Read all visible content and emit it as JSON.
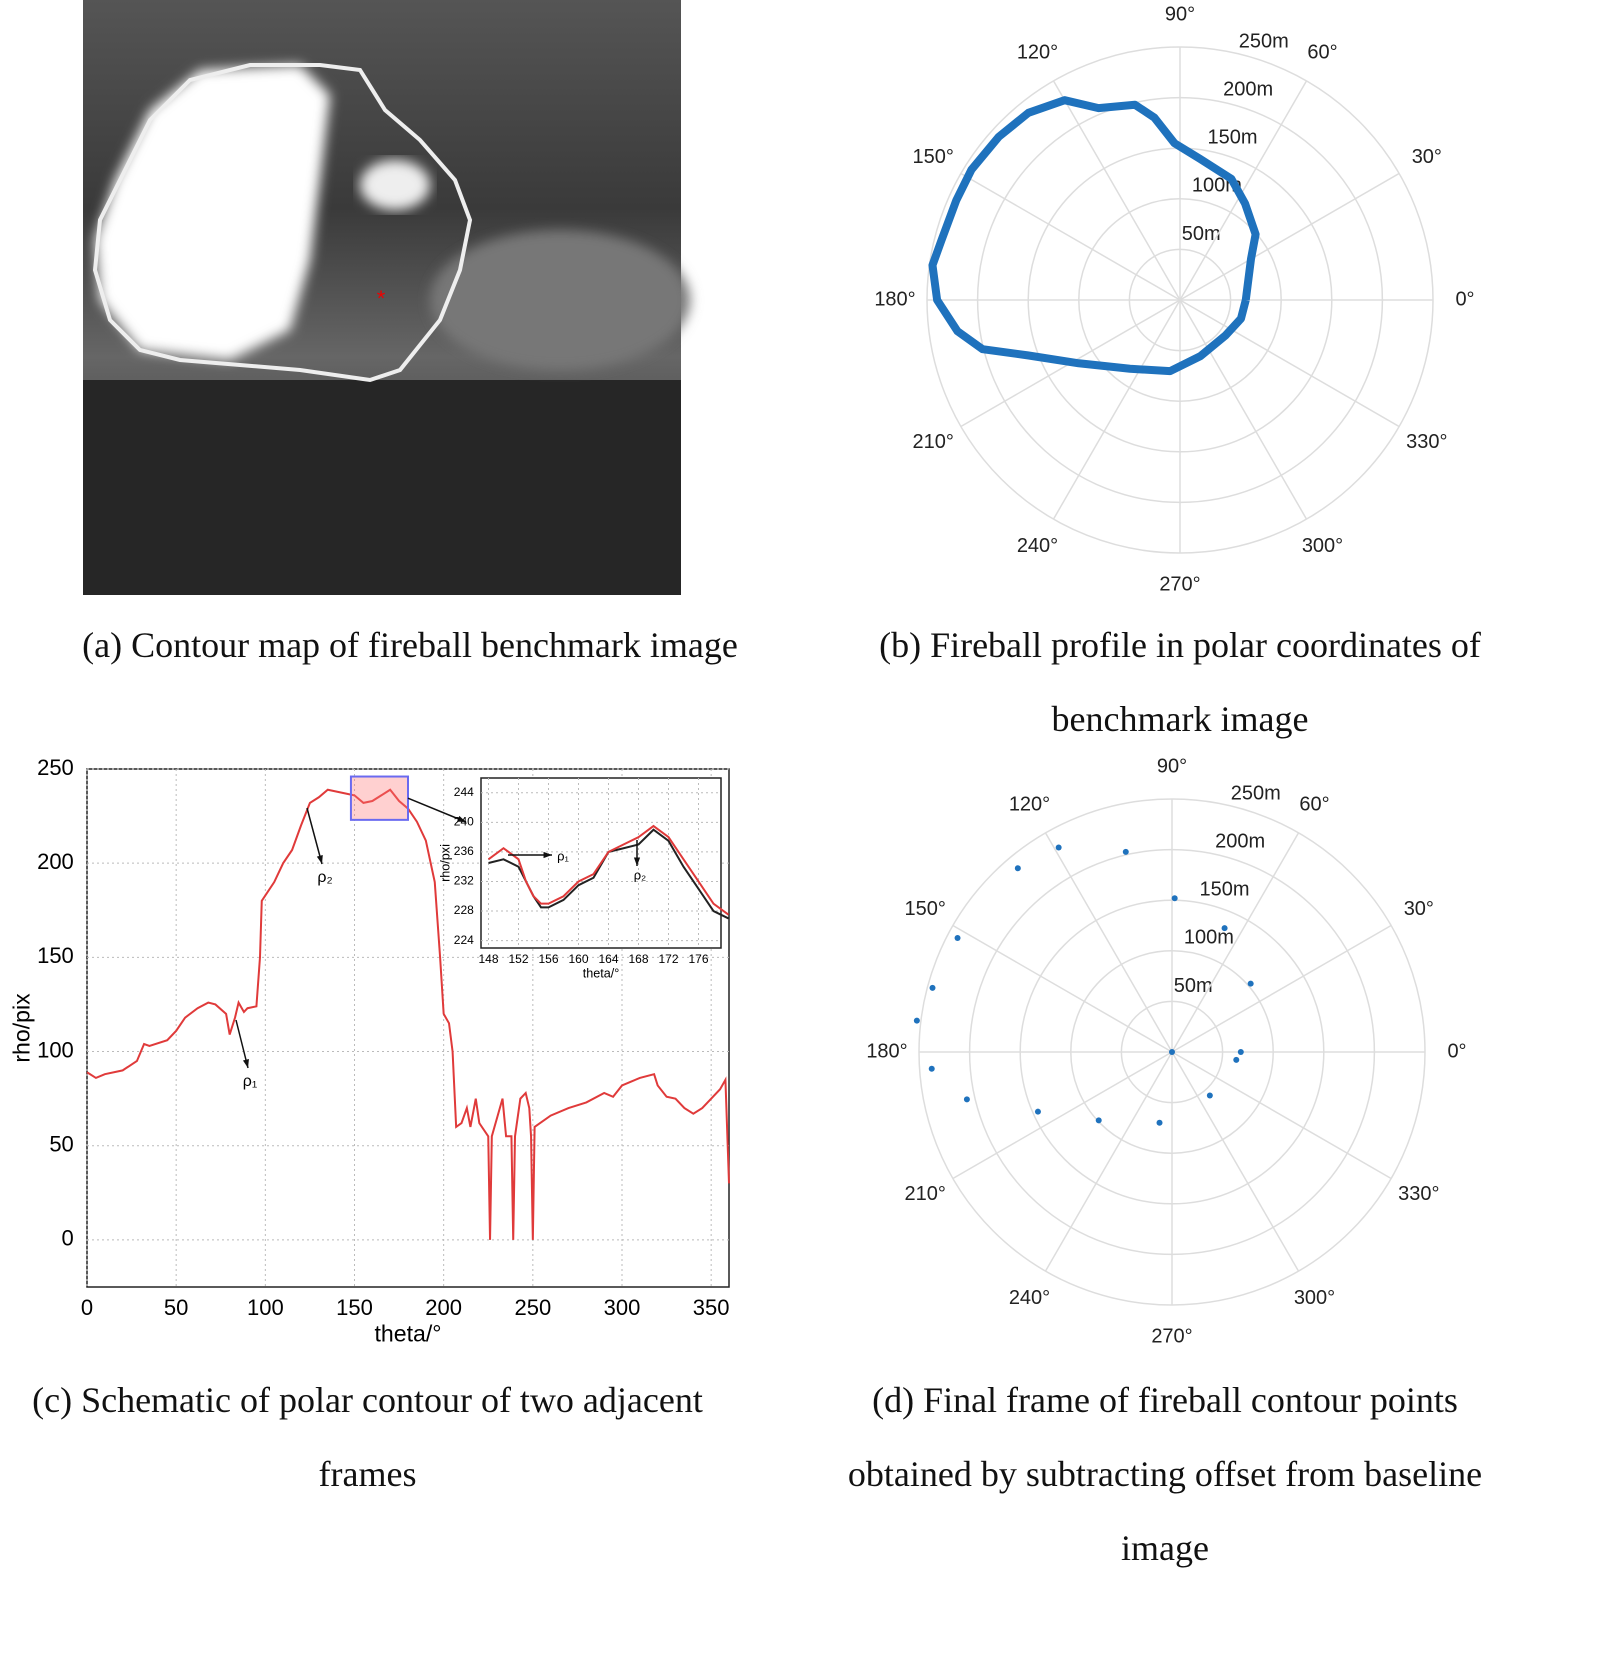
{
  "image_panel": {
    "caption": "(a) Contour map of fireball benchmark image"
  },
  "chart_data": [
    {
      "type": "polar",
      "mode": "line",
      "caption": "(b) Fireball profile in polar coordinates of benchmark image",
      "color": "#1f72bd",
      "theta": [
        0,
        30,
        41,
        56,
        67,
        82,
        92,
        98,
        103,
        113,
        120,
        129,
        138,
        148,
        156,
        166,
        172,
        180,
        188,
        194,
        200,
        212,
        234,
        262,
        290,
        322,
        343,
        360
      ],
      "r": [
        65,
        81,
        99,
        115,
        130,
        141,
        155,
        182,
        198,
        206,
        228,
        238,
        241,
        243,
        242,
        243,
        247,
        240,
        222,
        201,
        160,
        118,
        84,
        71,
        59,
        57,
        63,
        65
      ],
      "rlim": [
        0,
        250
      ],
      "rticks": [
        {
          "value": 50,
          "label": "50m"
        },
        {
          "value": 100,
          "label": "100m"
        },
        {
          "value": 150,
          "label": "150m"
        },
        {
          "value": 200,
          "label": "200m"
        },
        {
          "value": 250,
          "label": "250m"
        }
      ],
      "thetaticks": [
        {
          "value": 0,
          "label": "0°"
        },
        {
          "value": 30,
          "label": "30°"
        },
        {
          "value": 60,
          "label": "60°"
        },
        {
          "value": 90,
          "label": "90°"
        },
        {
          "value": 120,
          "label": "120°"
        },
        {
          "value": 150,
          "label": "150°"
        },
        {
          "value": 180,
          "label": "180°"
        },
        {
          "value": 210,
          "label": "210°"
        },
        {
          "value": 240,
          "label": "240°"
        },
        {
          "value": 270,
          "label": "270°"
        },
        {
          "value": 300,
          "label": "300°"
        },
        {
          "value": 330,
          "label": "330°"
        }
      ]
    },
    {
      "type": "line",
      "caption": "(c) Schematic of polar contour of two adjacent frames",
      "xlabel": "theta/°",
      "ylabel": "rho/pix",
      "x": [
        0,
        5,
        10,
        20,
        28,
        32,
        35,
        45,
        50,
        55,
        62,
        68,
        72,
        78,
        80,
        83,
        85,
        88,
        90,
        95,
        97,
        98,
        105,
        110,
        115,
        120,
        125,
        130,
        135,
        140,
        145,
        150,
        155,
        160,
        165,
        170,
        175,
        180,
        185,
        190,
        195,
        198,
        200,
        203,
        205,
        207,
        210,
        213,
        215,
        218,
        220,
        225,
        226,
        227,
        230,
        233,
        235,
        238,
        239,
        240,
        243,
        246,
        248,
        249,
        250,
        251,
        260,
        270,
        280,
        290,
        295,
        300,
        305,
        310,
        318,
        320,
        325,
        330,
        335,
        340,
        345,
        350,
        355,
        358,
        360
      ],
      "series": [
        {
          "color": "#e03a3a",
          "values": [
            89,
            86,
            88,
            90,
            95,
            104,
            103,
            106,
            111,
            118,
            123,
            126,
            125,
            120,
            109,
            118,
            126,
            121,
            123,
            124,
            150,
            180,
            190,
            200,
            207,
            220,
            232,
            235,
            239,
            238,
            237,
            236,
            232,
            233,
            236,
            239,
            233,
            229,
            222,
            212,
            190,
            150,
            120,
            115,
            100,
            60,
            62,
            70,
            60,
            75,
            62,
            55,
            0,
            55,
            65,
            75,
            55,
            55,
            0,
            55,
            75,
            78,
            70,
            55,
            0,
            60,
            66,
            70,
            73,
            78,
            76,
            82,
            84,
            86,
            88,
            82,
            76,
            75,
            70,
            67,
            70,
            75,
            80,
            85,
            30
          ]
        }
      ],
      "xlim": [
        0,
        360
      ],
      "ylim": [
        -25,
        250
      ],
      "xticks": [
        0,
        50,
        100,
        150,
        200,
        250,
        300,
        350
      ],
      "yticks": [
        0,
        50,
        100,
        150,
        200,
        250
      ],
      "grid": true,
      "annotations": [
        "ρ₁",
        "ρ₂"
      ],
      "inset": {
        "type": "line",
        "xlabel": "theta/°",
        "ylabel": "rho/pxi",
        "x": [
          148,
          150,
          152,
          153,
          154,
          155,
          156,
          158,
          160,
          162,
          164,
          166,
          168,
          170,
          172,
          174,
          176,
          178,
          180
        ],
        "series": [
          {
            "color": "#222222",
            "values": [
              234.5,
              235,
              234,
              232,
              230,
              228.5,
              228.5,
              229.5,
              231.5,
              232.5,
              236,
              236.5,
              237,
              239,
              237.5,
              234,
              231,
              228,
              227
            ]
          },
          {
            "color": "#e03a3a",
            "values": [
              235,
              236.5,
              235,
              232,
              230,
              229,
              229,
              230,
              232,
              233,
              236,
              237,
              238,
              239.5,
              238,
              235,
              232,
              229,
              227.5
            ]
          }
        ],
        "xlim": [
          147,
          179
        ],
        "ylim": [
          223,
          246
        ],
        "xticks": [
          148,
          152,
          156,
          160,
          164,
          168,
          172,
          176
        ],
        "yticks": [
          224,
          228,
          232,
          236,
          240,
          244
        ],
        "grid": true,
        "annotations": [
          "ρ₁",
          "ρ₂"
        ]
      }
    },
    {
      "type": "polar",
      "mode": "markers",
      "caption": "(d) Final frame of fireball contour points obtained by subtracting offset from baseline image",
      "color": "#1f72bd",
      "theta": [
        0,
        0,
        41,
        67,
        89,
        103,
        119,
        130,
        152,
        165,
        173,
        184,
        193,
        204,
        223,
        260,
        311,
        353
      ],
      "r": [
        0,
        68,
        103,
        133,
        152,
        203,
        231,
        237,
        240,
        245,
        254,
        238,
        208,
        145,
        99,
        71,
        57,
        64
      ],
      "rlim": [
        0,
        250
      ],
      "rticks": [
        {
          "value": 50,
          "label": "50m"
        },
        {
          "value": 100,
          "label": "100m"
        },
        {
          "value": 150,
          "label": "150m"
        },
        {
          "value": 200,
          "label": "200m"
        },
        {
          "value": 250,
          "label": "250m"
        }
      ],
      "thetaticks": [
        {
          "value": 0,
          "label": "0°"
        },
        {
          "value": 30,
          "label": "30°"
        },
        {
          "value": 60,
          "label": "60°"
        },
        {
          "value": 90,
          "label": "90°"
        },
        {
          "value": 120,
          "label": "120°"
        },
        {
          "value": 150,
          "label": "150°"
        },
        {
          "value": 180,
          "label": "180°"
        },
        {
          "value": 210,
          "label": "210°"
        },
        {
          "value": 240,
          "label": "240°"
        },
        {
          "value": 270,
          "label": "270°"
        },
        {
          "value": 300,
          "label": "300°"
        },
        {
          "value": 330,
          "label": "330°"
        }
      ]
    }
  ]
}
